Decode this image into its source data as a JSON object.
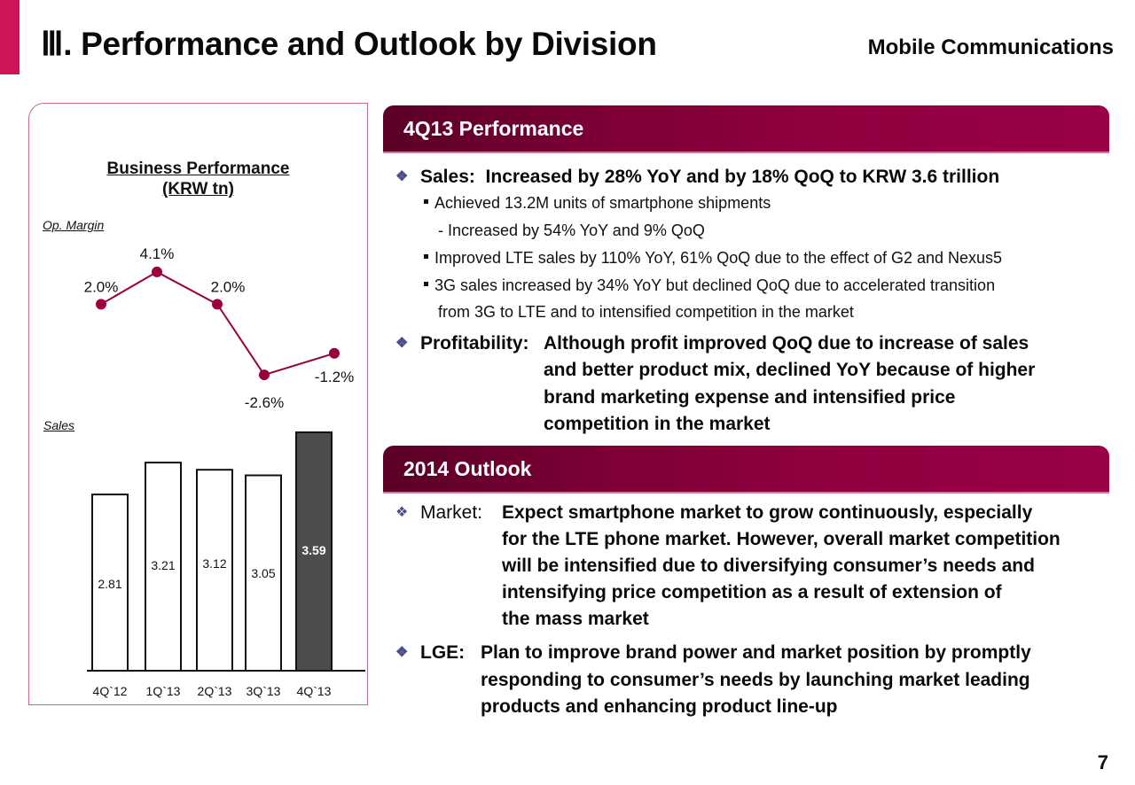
{
  "header": {
    "title": "Ⅲ. Performance and Outlook by Division",
    "division": "Mobile Communications"
  },
  "colors": {
    "accent": "#d0145a",
    "header_dark": "#5a0126",
    "header_light": "#9a0046",
    "line_series": "#99003d",
    "highlight_bar": "#4d4d4d",
    "bullet_diamond": "#4a4d8c"
  },
  "chart_data": [
    {
      "type": "line",
      "title": "Business Performance",
      "subtitle": "(KRW tn)",
      "series_label": "Op. Margin",
      "categories": [
        "4Q`12",
        "1Q`13",
        "2Q`13",
        "3Q`13",
        "4Q`13"
      ],
      "values": [
        2.0,
        4.1,
        2.0,
        -2.6,
        -1.2
      ],
      "data_labels": [
        "2.0%",
        "4.1%",
        "2.0%",
        "-2.6%",
        "-1.2%"
      ],
      "unit": "%",
      "ylim": [
        -3,
        4.5
      ],
      "grid": false,
      "legend": "none"
    },
    {
      "type": "bar",
      "series_label": "Sales",
      "categories": [
        "4Q`12",
        "1Q`13",
        "2Q`13",
        "3Q`13",
        "4Q`13"
      ],
      "values": [
        2.81,
        3.21,
        3.12,
        3.05,
        3.59
      ],
      "data_labels": [
        "2.81",
        "3.21",
        "3.12",
        "3.05",
        "3.59"
      ],
      "highlight_index": 4,
      "unit": "KRW tn",
      "ylim": [
        0.6,
        3.6
      ],
      "grid": false,
      "legend": "none"
    }
  ],
  "performance": {
    "heading": "4Q13 Performance",
    "sales": {
      "label": "Sales:",
      "text": "Increased by 28% YoY and by 18% QoQ to KRW 3.6 trillion",
      "points": [
        "Achieved 13.2M units of smartphone shipments",
        "- Increased by 54% YoY and 9% QoQ",
        "Improved LTE sales by 110% YoY, 61% QoQ due to the effect of G2 and Nexus5",
        "3G sales increased by 34% YoY but declined QoQ due to accelerated transition",
        "from 3G to LTE and to intensified competition in the market"
      ]
    },
    "profitability": {
      "label": "Profitability:",
      "lines": [
        "Although profit improved QoQ due to increase of sales",
        "and better product mix, declined YoY because of higher",
        "brand marketing expense and intensified price",
        "competition in the market"
      ]
    }
  },
  "outlook": {
    "heading": "2014 Outlook",
    "market": {
      "label": "Market:",
      "lines": [
        "Expect smartphone market to grow continuously, especially",
        "for the LTE phone market. However, overall market competition",
        "will be intensified due to diversifying consumer’s needs and",
        "intensifying price competition as a result of extension of",
        "the mass market"
      ]
    },
    "lge": {
      "label": "LGE:",
      "lines": [
        "Plan to improve brand power and market position by promptly",
        "responding to consumer’s needs by launching market leading",
        "products and enhancing product line-up"
      ]
    }
  },
  "icons": {
    "bullet": "❖"
  },
  "page_number": "7"
}
